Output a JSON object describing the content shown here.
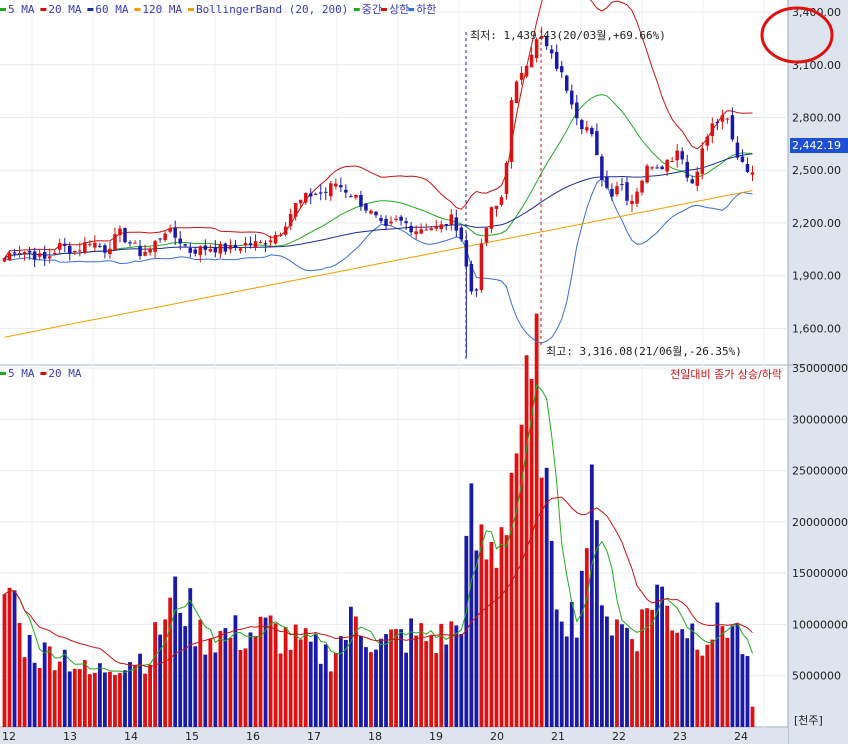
{
  "legend_price": [
    {
      "label": "5 MA",
      "color": "#22aa22"
    },
    {
      "label": "20 MA",
      "color": "#cc1111"
    },
    {
      "label": "60 MA",
      "color": "#1a2f8f"
    },
    {
      "label": "120 MA",
      "color": "#f0a000"
    },
    {
      "label": "BollingerBand (20, 200)",
      "color": "#f0a000"
    },
    {
      "label": "중간",
      "color": "#22aa22"
    },
    {
      "label": "상한",
      "color": "#cc1111"
    },
    {
      "label": "하한",
      "color": "#3b6fd6"
    }
  ],
  "legend_volume": [
    {
      "label": "5 MA",
      "color": "#22aa22"
    },
    {
      "label": "20 MA",
      "color": "#cc1111"
    }
  ],
  "annotations": {
    "low": "최저: 1,439.43(20/03월,+69.66%)",
    "high": "최고: 3,316.08(21/06월,-26.35%)",
    "volume_note": "전일대비 종가 상승/하락",
    "unit": "[천주]",
    "current_price": "2,442.19"
  },
  "colors": {
    "up": "#dd1111",
    "down": "#1a1aaa",
    "ma5": "#22aa22",
    "ma20": "#cc1111",
    "ma60": "#1a2f8f",
    "ma120": "#f0a000",
    "bb_mid": "#22aa22",
    "bb_upper": "#cc1111",
    "bb_lower": "#3b6fd6",
    "price_box": "#1f4fd6",
    "highlight_circle": "#e01010"
  },
  "chart_data": {
    "type": "candlestick",
    "price_axis": {
      "ticks": [
        "1,600.00",
        "1,900.00",
        "2,200.00",
        "2,500.00",
        "2,800.00",
        "3,100.00",
        "3,400.00"
      ],
      "range": [
        1420,
        3440
      ]
    },
    "volume_axis": {
      "ticks": [
        "5000000",
        "10000000",
        "15000000",
        "20000000",
        "25000000",
        "30000000",
        "35000000"
      ],
      "range": [
        0,
        35000000
      ]
    },
    "x_labels": [
      "12",
      "13",
      "14",
      "15",
      "16",
      "17",
      "18",
      "19",
      "20",
      "21",
      "22",
      "23",
      "24"
    ],
    "ohlc_control_points": [
      [
        0,
        1980
      ],
      [
        15,
        2050
      ],
      [
        30,
        2030
      ],
      [
        45,
        1990
      ],
      [
        60,
        2070
      ],
      [
        75,
        2040
      ],
      [
        90,
        2100
      ],
      [
        105,
        2050
      ],
      [
        120,
        2140
      ],
      [
        135,
        2060
      ],
      [
        140,
        2030
      ],
      [
        150,
        2050
      ],
      [
        165,
        2160
      ],
      [
        180,
        2100
      ],
      [
        190,
        2040
      ],
      [
        210,
        2060
      ],
      [
        230,
        2050
      ],
      [
        245,
        2080
      ],
      [
        260,
        2080
      ],
      [
        280,
        2150
      ],
      [
        295,
        2300
      ],
      [
        310,
        2360
      ],
      [
        325,
        2370
      ],
      [
        335,
        2430
      ],
      [
        345,
        2390
      ],
      [
        355,
        2350
      ],
      [
        365,
        2290
      ],
      [
        375,
        2230
      ],
      [
        385,
        2150
      ],
      [
        395,
        2210
      ],
      [
        405,
        2200
      ],
      [
        415,
        2160
      ],
      [
        425,
        2180
      ],
      [
        440,
        2170
      ],
      [
        450,
        2230
      ],
      [
        460,
        2160
      ],
      [
        465,
        1990
      ],
      [
        470,
        1830
      ],
      [
        475,
        1770
      ],
      [
        480,
        2020
      ],
      [
        490,
        2260
      ],
      [
        500,
        2310
      ],
      [
        505,
        2440
      ],
      [
        510,
        2850
      ],
      [
        520,
        3050
      ],
      [
        530,
        3160
      ],
      [
        540,
        3270
      ],
      [
        550,
        3160
      ],
      [
        560,
        3060
      ],
      [
        570,
        2930
      ],
      [
        580,
        2770
      ],
      [
        590,
        2730
      ],
      [
        600,
        2490
      ],
      [
        610,
        2360
      ],
      [
        620,
        2450
      ],
      [
        630,
        2310
      ],
      [
        640,
        2430
      ],
      [
        650,
        2540
      ],
      [
        660,
        2530
      ],
      [
        670,
        2560
      ],
      [
        680,
        2640
      ],
      [
        690,
        2390
      ],
      [
        700,
        2570
      ],
      [
        710,
        2740
      ],
      [
        720,
        2790
      ],
      [
        728,
        2780
      ],
      [
        735,
        2600
      ],
      [
        745,
        2540
      ],
      [
        752,
        2470
      ],
      [
        755,
        2440
      ]
    ],
    "volume_control_points": [
      [
        0,
        9000000
      ],
      [
        12,
        15000000
      ],
      [
        20,
        9000000
      ],
      [
        40,
        7000000
      ],
      [
        60,
        7500000
      ],
      [
        90,
        5000000
      ],
      [
        120,
        6500000
      ],
      [
        150,
        7000000
      ],
      [
        165,
        11000000
      ],
      [
        180,
        13000000
      ],
      [
        200,
        9000000
      ],
      [
        240,
        9000000
      ],
      [
        270,
        9500000
      ],
      [
        300,
        8000000
      ],
      [
        330,
        7000000
      ],
      [
        355,
        10500000
      ],
      [
        380,
        8000000
      ],
      [
        410,
        9000000
      ],
      [
        440,
        8500000
      ],
      [
        460,
        10000000
      ],
      [
        470,
        20000000
      ],
      [
        480,
        17000000
      ],
      [
        495,
        17000000
      ],
      [
        510,
        24000000
      ],
      [
        520,
        30000000
      ],
      [
        530,
        29500000
      ],
      [
        540,
        35000000
      ],
      [
        550,
        15000000
      ],
      [
        560,
        13000000
      ],
      [
        575,
        10000000
      ],
      [
        590,
        22000000
      ],
      [
        610,
        10000000
      ],
      [
        640,
        9500000
      ],
      [
        655,
        14000000
      ],
      [
        670,
        11000000
      ],
      [
        700,
        9000000
      ],
      [
        730,
        10500000
      ],
      [
        745,
        7500000
      ],
      [
        752,
        2000000
      ]
    ]
  }
}
